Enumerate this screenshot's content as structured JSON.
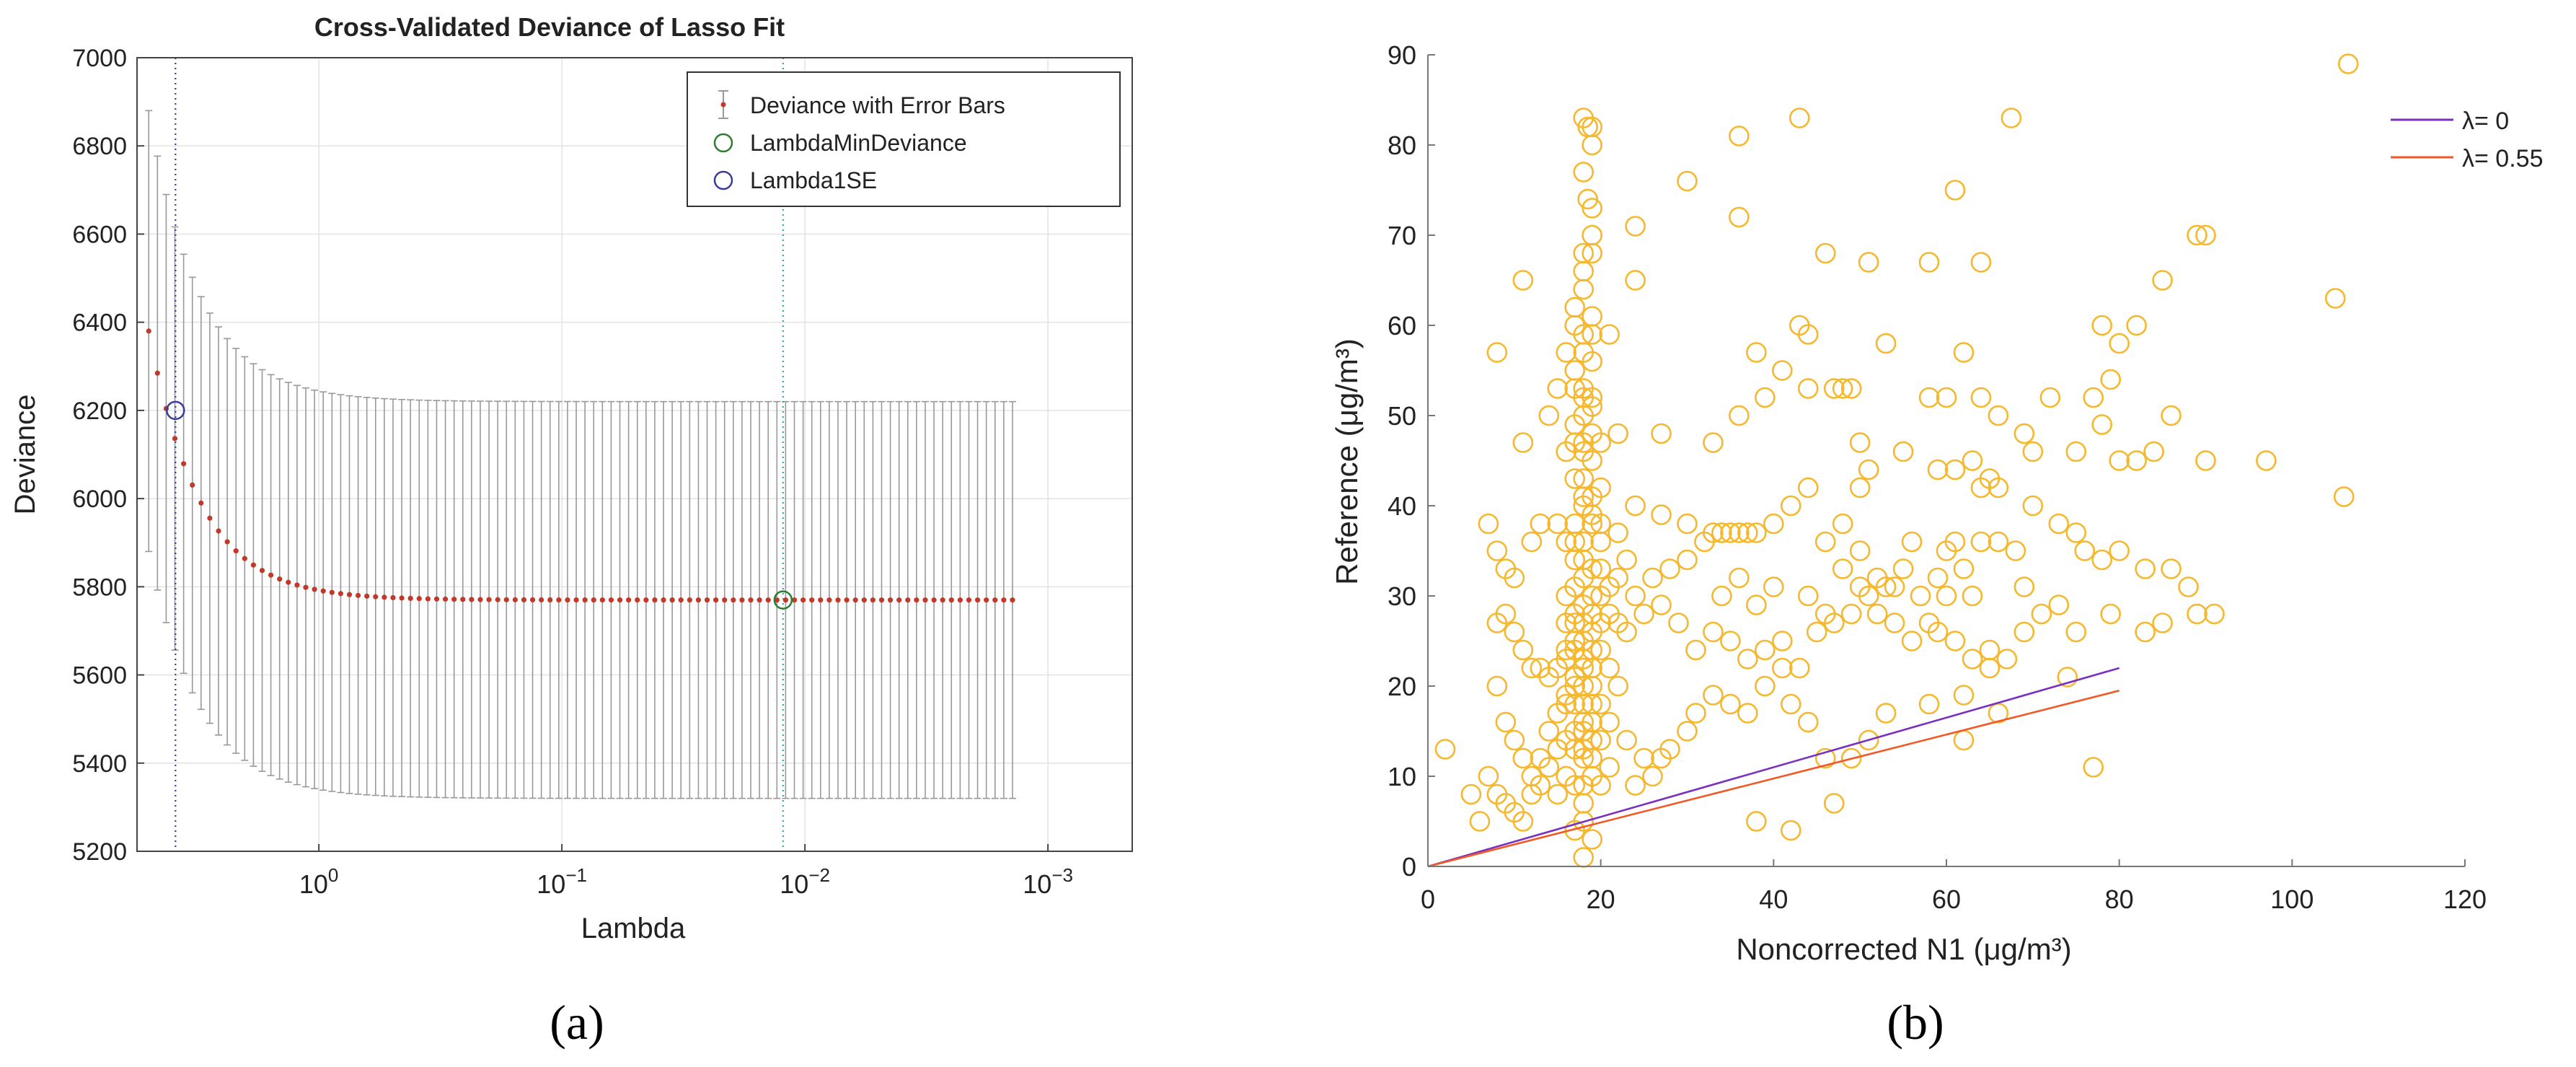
{
  "figure": {
    "captions": [
      "(a)",
      "(b)"
    ]
  },
  "chart_data": [
    {
      "type": "scatter",
      "title": "Cross-Validated Deviance of Lasso Fit",
      "xlabel": "Lambda",
      "ylabel": "Deviance",
      "x_scale": "log",
      "x_reversed": true,
      "xlim": [
        5.6,
        0.00045
      ],
      "ylim": [
        5200,
        7000
      ],
      "xtick_labels": [
        {
          "value": 1,
          "base": "10",
          "exp": "0"
        },
        {
          "value": 0.1,
          "base": "10",
          "exp": "−1"
        },
        {
          "value": 0.01,
          "base": "10",
          "exp": "−2"
        },
        {
          "value": 0.001,
          "base": "10",
          "exp": "−3"
        }
      ],
      "ytick_labels": [
        "5200",
        "5400",
        "5600",
        "5800",
        "6000",
        "6200",
        "6400",
        "6600",
        "6800",
        "7000"
      ],
      "grid": true,
      "legend": {
        "placement": "top-right",
        "entries": [
          "Deviance with Error Bars",
          "LambdaMinDeviance",
          "Lambda1SE"
        ]
      },
      "series": [
        {
          "name": "Deviance with Error Bars",
          "color": "#c0392b",
          "errorbar_color": "#999999",
          "lambda_log10_start": 0.7,
          "lambda_log10_step": -0.0359,
          "points": 100,
          "deviance": {
            "plateau": 5770,
            "start_amplitude": 610,
            "decay_per_step": 0.17
          },
          "error_half_width": {
            "plateau": 450,
            "start_amplitude": 50
          }
        }
      ],
      "markers": [
        {
          "name": "LambdaMinDeviance",
          "lambda": 0.0123,
          "deviance": 5770,
          "color": "#2e7d32"
        },
        {
          "name": "Lambda1SE",
          "lambda": 3.89,
          "deviance": 6200,
          "color": "#3b3b9a"
        }
      ],
      "vlines": [
        {
          "lambda": 3.89,
          "color": "#3b3b9a"
        },
        {
          "lambda": 0.0123,
          "color": "#3aa6a0"
        }
      ]
    },
    {
      "type": "scatter",
      "title": "",
      "xlabel": "Noncorrected N1 (μg/m³)",
      "ylabel": "Reference (μg/m³)",
      "xlim": [
        0,
        120
      ],
      "ylim": [
        0,
        90
      ],
      "xticks": [
        "0",
        "20",
        "40",
        "60",
        "80",
        "100",
        "120"
      ],
      "yticks": [
        "0",
        "10",
        "20",
        "30",
        "40",
        "50",
        "60",
        "70",
        "80",
        "90"
      ],
      "grid": false,
      "legend": {
        "placement": "top-right",
        "entries": [
          "λ= 0",
          "λ= 0.55"
        ]
      },
      "lines": [
        {
          "name": "λ= 0",
          "color": "#7b2fbe",
          "x": [
            0,
            80
          ],
          "y": [
            0,
            22
          ]
        },
        {
          "name": "λ= 0.55",
          "color": "#f05a28",
          "x": [
            0,
            80
          ],
          "y": [
            0,
            19.5
          ]
        }
      ],
      "marker_color": "#f5b82e",
      "points": [
        [
          106.5,
          89
        ],
        [
          105,
          63
        ],
        [
          106,
          41
        ],
        [
          67.5,
          83
        ],
        [
          43,
          83
        ],
        [
          36,
          81
        ],
        [
          18,
          83
        ],
        [
          18.5,
          82
        ],
        [
          19,
          82
        ],
        [
          19,
          80
        ],
        [
          18,
          77
        ],
        [
          18.5,
          74
        ],
        [
          19,
          73
        ],
        [
          24,
          71
        ],
        [
          30,
          76
        ],
        [
          61,
          75
        ],
        [
          90,
          70
        ],
        [
          89,
          70
        ],
        [
          85,
          65
        ],
        [
          64,
          67
        ],
        [
          58,
          67
        ],
        [
          51,
          67
        ],
        [
          46,
          68
        ],
        [
          36,
          72
        ],
        [
          24,
          65
        ],
        [
          11,
          65
        ],
        [
          18,
          68
        ],
        [
          19,
          70
        ],
        [
          18,
          64
        ],
        [
          19,
          61
        ],
        [
          17,
          60
        ],
        [
          18,
          59
        ],
        [
          19,
          59
        ],
        [
          21,
          59
        ],
        [
          16,
          57
        ],
        [
          8,
          57
        ],
        [
          38,
          57
        ],
        [
          43,
          60
        ],
        [
          44,
          59
        ],
        [
          48,
          53
        ],
        [
          53,
          58
        ],
        [
          62,
          57
        ],
        [
          58,
          52
        ],
        [
          60,
          52
        ],
        [
          64,
          52
        ],
        [
          66,
          50
        ],
        [
          69,
          48
        ],
        [
          72,
          52
        ],
        [
          78,
          60
        ],
        [
          80,
          58
        ],
        [
          79,
          54
        ],
        [
          82,
          60
        ],
        [
          86,
          50
        ],
        [
          84,
          46
        ],
        [
          82,
          45
        ],
        [
          80,
          45
        ],
        [
          97,
          45
        ],
        [
          90,
          45
        ],
        [
          15,
          53
        ],
        [
          14,
          50
        ],
        [
          17,
          53
        ],
        [
          18,
          52
        ],
        [
          19,
          52
        ],
        [
          18,
          50
        ],
        [
          19,
          48
        ],
        [
          17,
          47
        ],
        [
          16,
          46
        ],
        [
          11,
          47
        ],
        [
          20,
          47
        ],
        [
          22,
          48
        ],
        [
          27,
          48
        ],
        [
          33,
          47
        ],
        [
          36,
          50
        ],
        [
          39,
          52
        ],
        [
          41,
          55
        ],
        [
          44,
          53
        ],
        [
          47,
          53
        ],
        [
          49,
          53
        ],
        [
          50,
          47
        ],
        [
          51,
          44
        ],
        [
          50,
          42
        ],
        [
          55,
          46
        ],
        [
          59,
          44
        ],
        [
          61,
          44
        ],
        [
          63,
          45
        ],
        [
          64,
          42
        ],
        [
          65,
          43
        ],
        [
          66,
          42
        ],
        [
          70,
          46
        ],
        [
          75,
          46
        ],
        [
          77,
          52
        ],
        [
          78,
          49
        ],
        [
          7,
          38
        ],
        [
          8,
          35
        ],
        [
          9,
          33
        ],
        [
          10,
          32
        ],
        [
          12,
          36
        ],
        [
          13,
          38
        ],
        [
          15,
          38
        ],
        [
          16,
          36
        ],
        [
          17,
          38
        ],
        [
          18,
          40
        ],
        [
          19,
          41
        ],
        [
          20,
          38
        ],
        [
          22,
          37
        ],
        [
          24,
          40
        ],
        [
          27,
          39
        ],
        [
          30,
          38
        ],
        [
          33,
          37
        ],
        [
          34,
          37
        ],
        [
          35,
          37
        ],
        [
          36,
          37
        ],
        [
          37,
          37
        ],
        [
          38,
          37
        ],
        [
          40,
          38
        ],
        [
          42,
          40
        ],
        [
          44,
          42
        ],
        [
          46,
          36
        ],
        [
          48,
          38
        ],
        [
          50,
          35
        ],
        [
          52,
          32
        ],
        [
          54,
          31
        ],
        [
          56,
          36
        ],
        [
          59,
          32
        ],
        [
          60,
          35
        ],
        [
          61,
          36
        ],
        [
          62,
          33
        ],
        [
          63,
          30
        ],
        [
          64,
          36
        ],
        [
          66,
          36
        ],
        [
          68,
          35
        ],
        [
          70,
          40
        ],
        [
          73,
          38
        ],
        [
          75,
          37
        ],
        [
          76,
          35
        ],
        [
          78,
          34
        ],
        [
          80,
          35
        ],
        [
          83,
          33
        ],
        [
          85,
          27
        ],
        [
          86,
          33
        ],
        [
          88,
          31
        ],
        [
          8,
          27
        ],
        [
          9,
          28
        ],
        [
          10,
          26
        ],
        [
          11,
          24
        ],
        [
          12,
          22
        ],
        [
          13,
          22
        ],
        [
          14,
          21
        ],
        [
          15,
          22
        ],
        [
          16,
          24
        ],
        [
          17,
          25
        ],
        [
          18,
          27
        ],
        [
          19,
          28
        ],
        [
          20,
          30
        ],
        [
          21,
          28
        ],
        [
          22,
          27
        ],
        [
          23,
          26
        ],
        [
          24,
          30
        ],
        [
          25,
          28
        ],
        [
          27,
          29
        ],
        [
          29,
          27
        ],
        [
          31,
          24
        ],
        [
          33,
          26
        ],
        [
          35,
          25
        ],
        [
          37,
          23
        ],
        [
          39,
          24
        ],
        [
          41,
          25
        ],
        [
          43,
          22
        ],
        [
          45,
          26
        ],
        [
          47,
          27
        ],
        [
          49,
          28
        ],
        [
          51,
          30
        ],
        [
          53,
          31
        ],
        [
          55,
          33
        ],
        [
          57,
          30
        ],
        [
          59,
          26
        ],
        [
          61,
          25
        ],
        [
          63,
          23
        ],
        [
          65,
          24
        ],
        [
          67,
          23
        ],
        [
          69,
          26
        ],
        [
          71,
          28
        ],
        [
          73,
          29
        ],
        [
          75,
          26
        ],
        [
          77,
          11
        ],
        [
          62,
          19
        ],
        [
          58,
          18
        ],
        [
          62,
          14
        ],
        [
          66,
          17
        ],
        [
          65,
          22
        ],
        [
          8,
          20
        ],
        [
          9,
          16
        ],
        [
          10,
          14
        ],
        [
          11,
          12
        ],
        [
          12,
          10
        ],
        [
          13,
          12
        ],
        [
          14,
          15
        ],
        [
          15,
          17
        ],
        [
          16,
          19
        ],
        [
          17,
          21
        ],
        [
          18,
          23
        ],
        [
          19,
          20
        ],
        [
          20,
          18
        ],
        [
          21,
          16
        ],
        [
          23,
          14
        ],
        [
          25,
          12
        ],
        [
          26,
          10
        ],
        [
          28,
          13
        ],
        [
          30,
          15
        ],
        [
          31,
          17
        ],
        [
          33,
          19
        ],
        [
          35,
          18
        ],
        [
          37,
          17
        ],
        [
          39,
          20
        ],
        [
          41,
          22
        ],
        [
          42,
          18
        ],
        [
          44,
          16
        ],
        [
          46,
          12
        ],
        [
          47,
          7
        ],
        [
          38,
          5
        ],
        [
          42,
          4
        ],
        [
          49,
          12
        ],
        [
          51,
          14
        ],
        [
          53,
          17
        ],
        [
          7,
          10
        ],
        [
          8,
          8
        ],
        [
          9,
          7
        ],
        [
          10,
          6
        ],
        [
          11,
          5
        ],
        [
          12,
          8
        ],
        [
          13,
          9
        ],
        [
          14,
          11
        ],
        [
          15,
          13
        ],
        [
          16,
          14
        ],
        [
          17,
          15
        ],
        [
          18,
          12
        ],
        [
          19,
          10
        ],
        [
          20,
          9
        ],
        [
          21,
          11
        ],
        [
          24,
          9
        ],
        [
          27,
          12
        ],
        [
          2,
          13
        ],
        [
          6,
          5
        ],
        [
          5,
          8
        ],
        [
          18,
          5
        ],
        [
          19,
          3
        ],
        [
          18,
          1
        ],
        [
          17,
          4
        ],
        [
          18,
          7
        ],
        [
          17,
          9
        ],
        [
          19,
          12
        ],
        [
          18,
          15
        ],
        [
          18,
          18
        ],
        [
          17,
          20
        ],
        [
          19,
          22
        ],
        [
          18,
          25
        ],
        [
          17,
          27
        ],
        [
          19,
          30
        ],
        [
          18,
          32
        ],
        [
          17,
          34
        ],
        [
          18,
          36
        ],
        [
          19,
          38
        ],
        [
          18,
          41
        ],
        [
          17,
          43
        ],
        [
          19,
          45
        ],
        [
          18,
          47
        ],
        [
          17,
          49
        ],
        [
          19,
          51
        ],
        [
          18,
          53
        ],
        [
          17,
          55
        ],
        [
          19,
          56
        ],
        [
          18,
          57
        ],
        [
          17,
          62
        ],
        [
          18,
          66
        ],
        [
          19,
          68
        ],
        [
          16,
          30
        ],
        [
          16,
          27
        ],
        [
          17,
          24
        ],
        [
          19,
          26
        ],
        [
          20,
          24
        ],
        [
          20,
          33
        ],
        [
          21,
          31
        ],
        [
          20,
          42
        ],
        [
          22,
          20
        ],
        [
          16,
          18
        ],
        [
          16,
          10
        ],
        [
          15,
          8
        ],
        [
          19,
          16
        ],
        [
          20,
          14
        ],
        [
          18,
          9
        ],
        [
          18,
          20
        ],
        [
          18,
          29
        ],
        [
          18,
          34
        ],
        [
          18,
          43
        ],
        [
          18,
          46
        ],
        [
          17,
          31
        ],
        [
          19,
          33
        ],
        [
          17,
          36
        ],
        [
          19,
          39
        ],
        [
          18,
          22
        ],
        [
          17,
          18
        ],
        [
          19,
          18
        ],
        [
          17,
          13
        ],
        [
          19,
          14
        ],
        [
          18,
          13
        ],
        [
          18,
          16
        ],
        [
          17,
          28
        ],
        [
          19,
          24
        ],
        [
          16,
          23
        ],
        [
          20,
          27
        ],
        [
          20,
          36
        ],
        [
          21,
          22
        ],
        [
          22,
          32
        ],
        [
          23,
          34
        ],
        [
          26,
          32
        ],
        [
          28,
          33
        ],
        [
          30,
          34
        ],
        [
          32,
          36
        ],
        [
          34,
          30
        ],
        [
          36,
          32
        ],
        [
          38,
          29
        ],
        [
          40,
          31
        ],
        [
          44,
          30
        ],
        [
          46,
          28
        ],
        [
          48,
          33
        ],
        [
          50,
          31
        ],
        [
          52,
          28
        ],
        [
          54,
          27
        ],
        [
          56,
          25
        ],
        [
          58,
          27
        ],
        [
          60,
          30
        ],
        [
          69,
          31
        ],
        [
          74,
          21
        ],
        [
          79,
          28
        ],
        [
          83,
          26
        ],
        [
          89,
          28
        ],
        [
          91,
          28
        ]
      ]
    }
  ]
}
